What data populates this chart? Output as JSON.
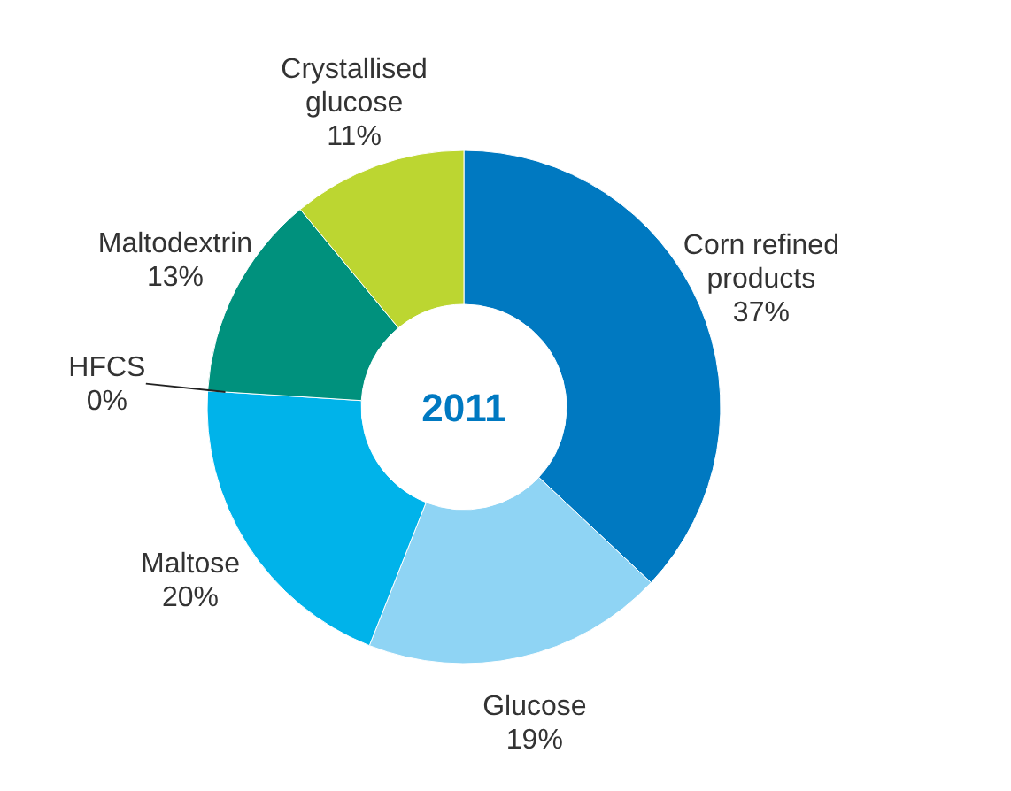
{
  "chart_data": {
    "type": "donut",
    "title": "2011",
    "categories": [
      "Corn refined products",
      "Glucose",
      "Maltose",
      "HFCS",
      "Maltodextrin",
      "Crystallised glucose"
    ],
    "values": [
      37,
      19,
      20,
      0,
      13,
      11
    ],
    "value_labels": [
      "37%",
      "19%",
      "20%",
      "0%",
      "13%",
      "11%"
    ],
    "colors": [
      "#0079c1",
      "#8fd4f4",
      "#00b3ea",
      "#1a8fa0",
      "#00917d",
      "#bcd631"
    ]
  }
}
